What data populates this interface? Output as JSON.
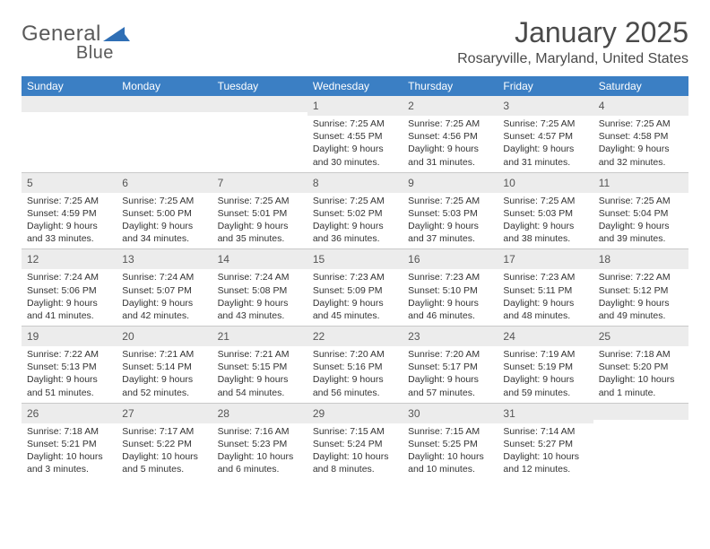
{
  "brand": {
    "name_part1": "General",
    "name_part2": "Blue",
    "logo_color": "#2f6fb5"
  },
  "colors": {
    "header_bg": "#3b7fc4",
    "header_text": "#ffffff",
    "daynum_bg": "#ececec",
    "text": "#333333",
    "border": "#c9c9c9",
    "page_bg": "#ffffff"
  },
  "title": "January 2025",
  "location": "Rosaryville, Maryland, United States",
  "days_of_week": [
    "Sunday",
    "Monday",
    "Tuesday",
    "Wednesday",
    "Thursday",
    "Friday",
    "Saturday"
  ],
  "weeks": [
    [
      {
        "n": "",
        "sunrise": "",
        "sunset": "",
        "daylight": ""
      },
      {
        "n": "",
        "sunrise": "",
        "sunset": "",
        "daylight": ""
      },
      {
        "n": "",
        "sunrise": "",
        "sunset": "",
        "daylight": ""
      },
      {
        "n": "1",
        "sunrise": "Sunrise: 7:25 AM",
        "sunset": "Sunset: 4:55 PM",
        "daylight": "Daylight: 9 hours and 30 minutes."
      },
      {
        "n": "2",
        "sunrise": "Sunrise: 7:25 AM",
        "sunset": "Sunset: 4:56 PM",
        "daylight": "Daylight: 9 hours and 31 minutes."
      },
      {
        "n": "3",
        "sunrise": "Sunrise: 7:25 AM",
        "sunset": "Sunset: 4:57 PM",
        "daylight": "Daylight: 9 hours and 31 minutes."
      },
      {
        "n": "4",
        "sunrise": "Sunrise: 7:25 AM",
        "sunset": "Sunset: 4:58 PM",
        "daylight": "Daylight: 9 hours and 32 minutes."
      }
    ],
    [
      {
        "n": "5",
        "sunrise": "Sunrise: 7:25 AM",
        "sunset": "Sunset: 4:59 PM",
        "daylight": "Daylight: 9 hours and 33 minutes."
      },
      {
        "n": "6",
        "sunrise": "Sunrise: 7:25 AM",
        "sunset": "Sunset: 5:00 PM",
        "daylight": "Daylight: 9 hours and 34 minutes."
      },
      {
        "n": "7",
        "sunrise": "Sunrise: 7:25 AM",
        "sunset": "Sunset: 5:01 PM",
        "daylight": "Daylight: 9 hours and 35 minutes."
      },
      {
        "n": "8",
        "sunrise": "Sunrise: 7:25 AM",
        "sunset": "Sunset: 5:02 PM",
        "daylight": "Daylight: 9 hours and 36 minutes."
      },
      {
        "n": "9",
        "sunrise": "Sunrise: 7:25 AM",
        "sunset": "Sunset: 5:03 PM",
        "daylight": "Daylight: 9 hours and 37 minutes."
      },
      {
        "n": "10",
        "sunrise": "Sunrise: 7:25 AM",
        "sunset": "Sunset: 5:03 PM",
        "daylight": "Daylight: 9 hours and 38 minutes."
      },
      {
        "n": "11",
        "sunrise": "Sunrise: 7:25 AM",
        "sunset": "Sunset: 5:04 PM",
        "daylight": "Daylight: 9 hours and 39 minutes."
      }
    ],
    [
      {
        "n": "12",
        "sunrise": "Sunrise: 7:24 AM",
        "sunset": "Sunset: 5:06 PM",
        "daylight": "Daylight: 9 hours and 41 minutes."
      },
      {
        "n": "13",
        "sunrise": "Sunrise: 7:24 AM",
        "sunset": "Sunset: 5:07 PM",
        "daylight": "Daylight: 9 hours and 42 minutes."
      },
      {
        "n": "14",
        "sunrise": "Sunrise: 7:24 AM",
        "sunset": "Sunset: 5:08 PM",
        "daylight": "Daylight: 9 hours and 43 minutes."
      },
      {
        "n": "15",
        "sunrise": "Sunrise: 7:23 AM",
        "sunset": "Sunset: 5:09 PM",
        "daylight": "Daylight: 9 hours and 45 minutes."
      },
      {
        "n": "16",
        "sunrise": "Sunrise: 7:23 AM",
        "sunset": "Sunset: 5:10 PM",
        "daylight": "Daylight: 9 hours and 46 minutes."
      },
      {
        "n": "17",
        "sunrise": "Sunrise: 7:23 AM",
        "sunset": "Sunset: 5:11 PM",
        "daylight": "Daylight: 9 hours and 48 minutes."
      },
      {
        "n": "18",
        "sunrise": "Sunrise: 7:22 AM",
        "sunset": "Sunset: 5:12 PM",
        "daylight": "Daylight: 9 hours and 49 minutes."
      }
    ],
    [
      {
        "n": "19",
        "sunrise": "Sunrise: 7:22 AM",
        "sunset": "Sunset: 5:13 PM",
        "daylight": "Daylight: 9 hours and 51 minutes."
      },
      {
        "n": "20",
        "sunrise": "Sunrise: 7:21 AM",
        "sunset": "Sunset: 5:14 PM",
        "daylight": "Daylight: 9 hours and 52 minutes."
      },
      {
        "n": "21",
        "sunrise": "Sunrise: 7:21 AM",
        "sunset": "Sunset: 5:15 PM",
        "daylight": "Daylight: 9 hours and 54 minutes."
      },
      {
        "n": "22",
        "sunrise": "Sunrise: 7:20 AM",
        "sunset": "Sunset: 5:16 PM",
        "daylight": "Daylight: 9 hours and 56 minutes."
      },
      {
        "n": "23",
        "sunrise": "Sunrise: 7:20 AM",
        "sunset": "Sunset: 5:17 PM",
        "daylight": "Daylight: 9 hours and 57 minutes."
      },
      {
        "n": "24",
        "sunrise": "Sunrise: 7:19 AM",
        "sunset": "Sunset: 5:19 PM",
        "daylight": "Daylight: 9 hours and 59 minutes."
      },
      {
        "n": "25",
        "sunrise": "Sunrise: 7:18 AM",
        "sunset": "Sunset: 5:20 PM",
        "daylight": "Daylight: 10 hours and 1 minute."
      }
    ],
    [
      {
        "n": "26",
        "sunrise": "Sunrise: 7:18 AM",
        "sunset": "Sunset: 5:21 PM",
        "daylight": "Daylight: 10 hours and 3 minutes."
      },
      {
        "n": "27",
        "sunrise": "Sunrise: 7:17 AM",
        "sunset": "Sunset: 5:22 PM",
        "daylight": "Daylight: 10 hours and 5 minutes."
      },
      {
        "n": "28",
        "sunrise": "Sunrise: 7:16 AM",
        "sunset": "Sunset: 5:23 PM",
        "daylight": "Daylight: 10 hours and 6 minutes."
      },
      {
        "n": "29",
        "sunrise": "Sunrise: 7:15 AM",
        "sunset": "Sunset: 5:24 PM",
        "daylight": "Daylight: 10 hours and 8 minutes."
      },
      {
        "n": "30",
        "sunrise": "Sunrise: 7:15 AM",
        "sunset": "Sunset: 5:25 PM",
        "daylight": "Daylight: 10 hours and 10 minutes."
      },
      {
        "n": "31",
        "sunrise": "Sunrise: 7:14 AM",
        "sunset": "Sunset: 5:27 PM",
        "daylight": "Daylight: 10 hours and 12 minutes."
      },
      {
        "n": "",
        "sunrise": "",
        "sunset": "",
        "daylight": ""
      }
    ]
  ]
}
